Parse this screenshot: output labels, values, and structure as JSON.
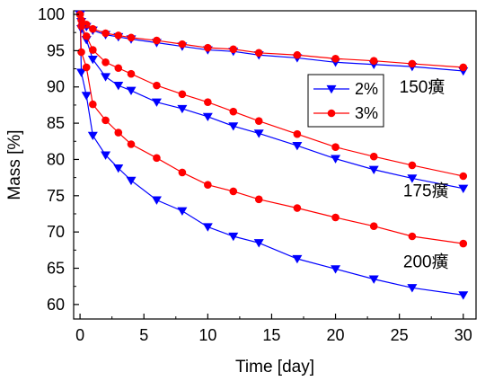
{
  "chart_data": {
    "type": "line",
    "xlabel": "Time [day]",
    "ylabel": "Mass [%]",
    "xlim": [
      -0.5,
      31
    ],
    "ylim": [
      58,
      100.5
    ],
    "xticks": [
      0,
      5,
      10,
      15,
      20,
      25,
      30
    ],
    "yticks": [
      60,
      65,
      70,
      75,
      80,
      85,
      90,
      95,
      100
    ],
    "grid": false,
    "legend": {
      "placement": "center-right"
    },
    "series": [
      {
        "name": "2%",
        "group": "150癀",
        "color": "#0000ff",
        "marker": "triangle-down",
        "x": [
          0,
          0.1,
          0.5,
          1,
          2,
          3,
          4,
          6,
          8,
          10,
          12,
          14,
          17,
          20,
          23,
          26,
          30
        ],
        "values": [
          100,
          99.0,
          98.3,
          97.8,
          97.2,
          96.9,
          96.6,
          96.1,
          95.6,
          95.1,
          94.9,
          94.4,
          94.0,
          93.4,
          93.1,
          92.8,
          92.2
        ]
      },
      {
        "name": "3%",
        "group": "150癀",
        "color": "#ff0000",
        "marker": "circle",
        "x": [
          0,
          0.1,
          0.5,
          1,
          2,
          3,
          4,
          6,
          8,
          10,
          12,
          14,
          17,
          20,
          23,
          26,
          30
        ],
        "values": [
          100,
          99.2,
          98.6,
          98.0,
          97.4,
          97.1,
          96.8,
          96.4,
          95.9,
          95.4,
          95.2,
          94.7,
          94.4,
          93.9,
          93.6,
          93.2,
          92.7
        ]
      },
      {
        "name": "2%",
        "group": "175癀",
        "color": "#0000ff",
        "marker": "triangle-down",
        "x": [
          0,
          0.1,
          0.5,
          1,
          2,
          3,
          4,
          6,
          8,
          10,
          12,
          14,
          17,
          20,
          23,
          26,
          30
        ],
        "values": [
          100,
          98.0,
          96.5,
          93.8,
          91.4,
          90.2,
          89.5,
          87.9,
          87.0,
          85.9,
          84.6,
          83.6,
          81.9,
          80.1,
          78.6,
          77.4,
          76.0
        ]
      },
      {
        "name": "3%",
        "group": "175癀",
        "color": "#ff0000",
        "marker": "circle",
        "x": [
          0,
          0.1,
          0.5,
          1,
          2,
          3,
          4,
          6,
          8,
          10,
          12,
          14,
          17,
          20,
          23,
          26,
          30
        ],
        "values": [
          100,
          98.4,
          97.0,
          95.1,
          93.4,
          92.6,
          91.8,
          90.2,
          89.0,
          87.9,
          86.6,
          85.3,
          83.5,
          81.7,
          80.4,
          79.2,
          77.7
        ]
      },
      {
        "name": "2%",
        "group": "200癀",
        "color": "#0000ff",
        "marker": "triangle-down",
        "x": [
          0,
          0.1,
          0.5,
          1,
          2,
          3,
          4,
          6,
          8,
          10,
          12,
          14,
          17,
          20,
          23,
          26,
          30
        ],
        "values": [
          100,
          92.0,
          88.8,
          83.3,
          80.6,
          78.8,
          77.1,
          74.4,
          72.9,
          70.7,
          69.4,
          68.5,
          66.3,
          64.9,
          63.5,
          62.3,
          61.3
        ]
      },
      {
        "name": "3%",
        "group": "200癀",
        "color": "#ff0000",
        "marker": "circle",
        "x": [
          0,
          0.1,
          0.5,
          1,
          2,
          3,
          4,
          6,
          8,
          10,
          12,
          14,
          17,
          20,
          23,
          26,
          30
        ],
        "values": [
          100,
          94.8,
          92.7,
          87.6,
          85.4,
          83.7,
          82.1,
          80.2,
          78.2,
          76.5,
          75.6,
          74.5,
          73.3,
          72.0,
          70.8,
          69.4,
          68.4
        ]
      }
    ],
    "annotations": [
      {
        "text": "150癀",
        "x": 25.0,
        "y": 89.2
      },
      {
        "text": "175癀",
        "x": 25.3,
        "y": 74.9
      },
      {
        "text": "200癀",
        "x": 25.3,
        "y": 65.1
      }
    ]
  }
}
